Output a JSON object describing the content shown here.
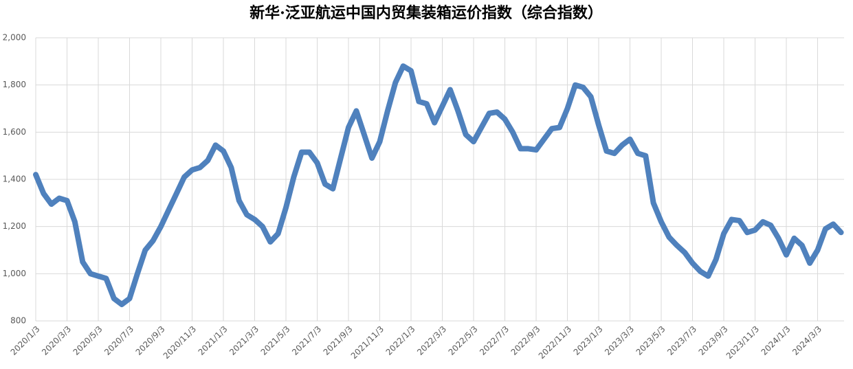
{
  "chart_data": {
    "type": "line",
    "title": "新华·泛亚航运中国内贸集装箱运价指数（综合指数）",
    "categories": [
      "2020/1/3",
      null,
      null,
      null,
      "2020/3/3",
      null,
      null,
      null,
      "2020/5/3",
      null,
      null,
      null,
      "2020/7/3",
      null,
      null,
      null,
      "2020/9/3",
      null,
      null,
      null,
      "2020/11/3",
      null,
      null,
      null,
      "2021/1/3",
      null,
      null,
      null,
      "2021/3/3",
      null,
      null,
      null,
      "2021/5/3",
      null,
      null,
      null,
      "2021/7/3",
      null,
      null,
      null,
      "2021/9/3",
      null,
      null,
      null,
      "2021/11/3",
      null,
      null,
      null,
      "2022/1/3",
      null,
      null,
      null,
      "2022/3/3",
      null,
      null,
      null,
      "2022/5/3",
      null,
      null,
      null,
      "2022/7/3",
      null,
      null,
      null,
      "2022/9/3",
      null,
      null,
      null,
      "2022/11/3",
      null,
      null,
      null,
      "2023/1/3",
      null,
      null,
      null,
      "2023/3/3",
      null,
      null,
      null,
      "2023/5/3",
      null,
      null,
      null,
      "2023/7/3",
      null,
      null,
      null,
      "2023/9/3",
      null,
      null,
      null,
      "2023/11/3",
      null,
      null,
      null,
      "2024/1/3",
      null,
      null,
      null,
      "2024/3/3",
      null,
      null,
      null
    ],
    "values": [
      1420,
      1340,
      1295,
      1320,
      1310,
      1220,
      1050,
      1000,
      990,
      980,
      895,
      870,
      895,
      1000,
      1100,
      1140,
      1200,
      1270,
      1340,
      1410,
      1440,
      1450,
      1480,
      1545,
      1520,
      1450,
      1310,
      1250,
      1230,
      1200,
      1135,
      1170,
      1280,
      1410,
      1515,
      1515,
      1470,
      1380,
      1360,
      1490,
      1620,
      1690,
      1590,
      1490,
      1560,
      1690,
      1810,
      1880,
      1860,
      1730,
      1720,
      1640,
      1710,
      1780,
      1690,
      1590,
      1560,
      1620,
      1680,
      1685,
      1655,
      1600,
      1530,
      1530,
      1525,
      1570,
      1615,
      1620,
      1700,
      1800,
      1790,
      1750,
      1630,
      1520,
      1510,
      1545,
      1570,
      1510,
      1500,
      1300,
      1220,
      1155,
      1120,
      1090,
      1045,
      1010,
      990,
      1060,
      1170,
      1230,
      1225,
      1175,
      1185,
      1220,
      1205,
      1150,
      1080,
      1150,
      1120,
      1045,
      1100,
      1190,
      1210,
      1175
    ],
    "color": "#4f81bd",
    "ylim": [
      800,
      2000
    ],
    "yticks": [
      800,
      {
        "value": 1000,
        "label": "1,000"
      },
      {
        "value": 1200,
        "label": "1,200"
      },
      {
        "value": 1400,
        "label": "1,400"
      },
      {
        "value": 1600,
        "label": "1,600"
      },
      {
        "value": 1800,
        "label": "1,800"
      },
      {
        "value": 2000,
        "label": "2,000"
      }
    ],
    "grid": true
  }
}
